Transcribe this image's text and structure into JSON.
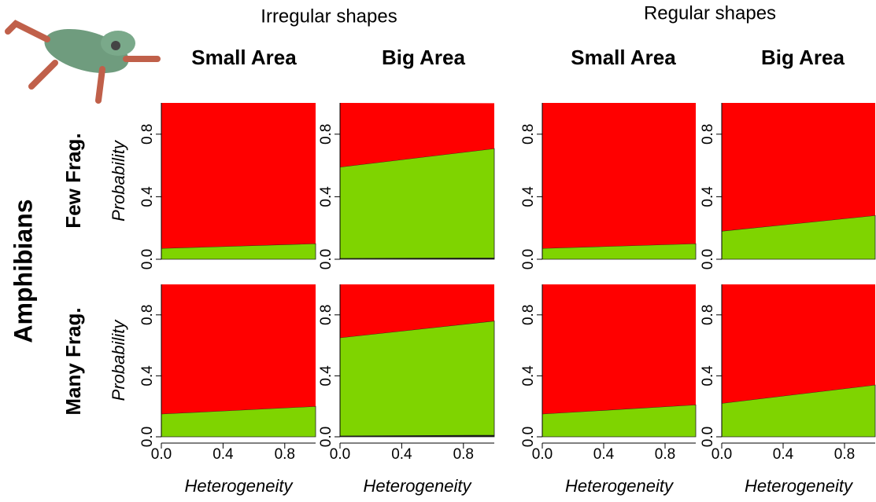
{
  "groups": [
    "Irregular shapes",
    "Regular shapes"
  ],
  "columns": [
    "Small Area",
    "Big Area",
    "Small Area",
    "Big Area"
  ],
  "rows": [
    "Few Frag.",
    "Many Frag."
  ],
  "taxon": "Amphibians",
  "chart_data": [
    {
      "type": "area",
      "x": [
        0,
        1
      ],
      "xlim": [
        0,
        1
      ],
      "ylim": [
        0,
        1
      ],
      "yticks": [
        {
          "value": 0,
          "label": "0.0"
        },
        0.4,
        0.8
      ],
      "ylabel": "Probability",
      "series": [
        {
          "color": "#7fd400",
          "values": [
            0.07,
            0.1
          ]
        },
        {
          "color": "#ff0000",
          "values": [
            0.93,
            0.9
          ]
        }
      ]
    },
    {
      "type": "area",
      "x": [
        0,
        1
      ],
      "xlim": [
        0,
        1
      ],
      "ylim": [
        0,
        1
      ],
      "yticks": [
        {
          "value": 0,
          "label": "0.0"
        },
        0.4,
        0.8
      ],
      "series": [
        {
          "color": "#111111",
          "values": [
            0.005,
            0.008
          ]
        },
        {
          "color": "#7fd400",
          "values": [
            0.585,
            0.7
          ]
        },
        {
          "color": "#ff0000",
          "values": [
            0.41,
            0.29
          ]
        }
      ]
    },
    {
      "type": "area",
      "x": [
        0,
        1
      ],
      "xlim": [
        0,
        1
      ],
      "ylim": [
        0,
        1
      ],
      "yticks": [
        {
          "value": 0,
          "label": "0.0"
        },
        0.4,
        0.8
      ],
      "series": [
        {
          "color": "#7fd400",
          "values": [
            0.07,
            0.1
          ]
        },
        {
          "color": "#ff0000",
          "values": [
            0.93,
            0.9
          ]
        }
      ]
    },
    {
      "type": "area",
      "x": [
        0,
        1
      ],
      "xlim": [
        0,
        1
      ],
      "ylim": [
        0,
        1
      ],
      "yticks": [
        {
          "value": 0,
          "label": "0.0"
        },
        0.4,
        0.8
      ],
      "series": [
        {
          "color": "#7fd400",
          "values": [
            0.18,
            0.28
          ]
        },
        {
          "color": "#ff0000",
          "values": [
            0.82,
            0.72
          ]
        }
      ]
    },
    {
      "type": "area",
      "x": [
        0,
        1
      ],
      "xlim": [
        0,
        1
      ],
      "ylim": [
        0,
        1
      ],
      "xticks": [
        {
          "value": 0,
          "label": "0.0"
        },
        0.4,
        0.8
      ],
      "xlabel": "Heterogeneity",
      "yticks": [
        {
          "value": 0,
          "label": "0.0"
        },
        0.4,
        0.8
      ],
      "ylabel": "Probability",
      "series": [
        {
          "color": "#7fd400",
          "values": [
            0.15,
            0.2
          ]
        },
        {
          "color": "#ff0000",
          "values": [
            0.85,
            0.8
          ]
        }
      ]
    },
    {
      "type": "area",
      "x": [
        0,
        1
      ],
      "xlim": [
        0,
        1
      ],
      "ylim": [
        0,
        1
      ],
      "xticks": [
        {
          "value": 0,
          "label": "0.0"
        },
        0.4,
        0.8
      ],
      "xlabel": "Heterogeneity",
      "yticks": [
        {
          "value": 0,
          "label": "0.0"
        },
        0.4,
        0.8
      ],
      "series": [
        {
          "color": "#111111",
          "values": [
            0.005,
            0.01
          ]
        },
        {
          "color": "#7fd400",
          "values": [
            0.645,
            0.75
          ]
        },
        {
          "color": "#ff0000",
          "values": [
            0.35,
            0.24
          ]
        }
      ]
    },
    {
      "type": "area",
      "x": [
        0,
        1
      ],
      "xlim": [
        0,
        1
      ],
      "ylim": [
        0,
        1
      ],
      "xticks": [
        {
          "value": 0,
          "label": "0.0"
        },
        0.4,
        0.8
      ],
      "xlabel": "Heterogeneity",
      "yticks": [
        {
          "value": 0,
          "label": "0.0"
        },
        0.4,
        0.8
      ],
      "series": [
        {
          "color": "#7fd400",
          "values": [
            0.15,
            0.21
          ]
        },
        {
          "color": "#ff0000",
          "values": [
            0.85,
            0.79
          ]
        }
      ]
    },
    {
      "type": "area",
      "x": [
        0,
        1
      ],
      "xlim": [
        0,
        1
      ],
      "ylim": [
        0,
        1
      ],
      "xticks": [
        {
          "value": 0,
          "label": "0.0"
        },
        0.4,
        0.8
      ],
      "xlabel": "Heterogeneity",
      "yticks": [
        {
          "value": 0,
          "label": "0.0"
        },
        0.4,
        0.8
      ],
      "series": [
        {
          "color": "#7fd400",
          "values": [
            0.22,
            0.34
          ]
        },
        {
          "color": "#ff0000",
          "values": [
            0.78,
            0.66
          ]
        }
      ]
    }
  ]
}
